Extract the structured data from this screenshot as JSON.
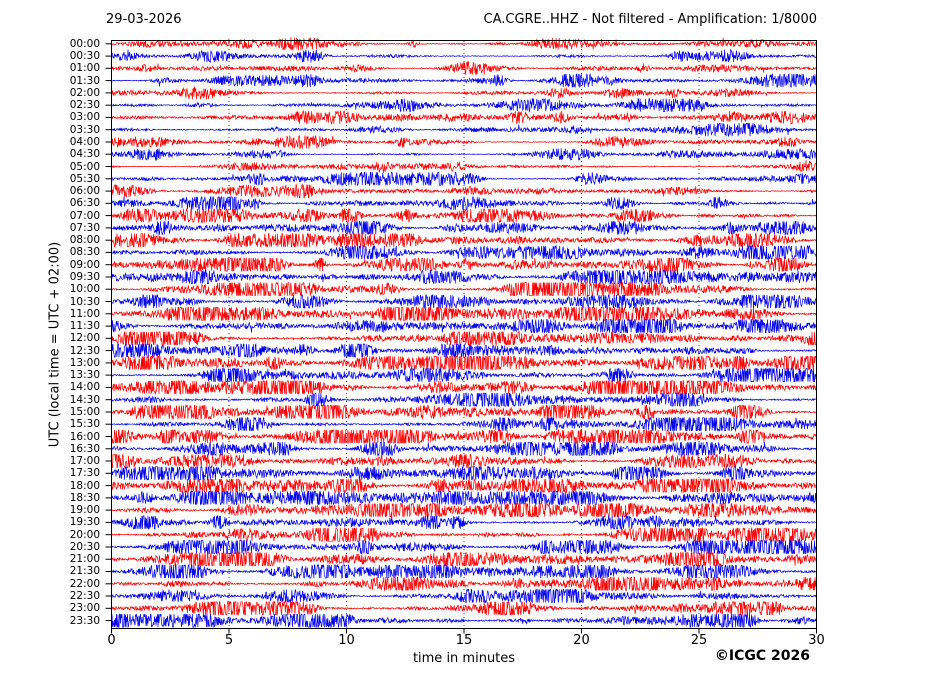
{
  "header": {
    "date": "29-03-2026",
    "title": "CA.CGRE..HHZ - Not filtered - Amplification: 1/8000"
  },
  "footer": {
    "copyright": "©ICGC 2026"
  },
  "chart_data": {
    "type": "line",
    "chart_kind": "helicorder-daily-seismogram",
    "title": "CA.CGRE..HHZ - Not filtered - Amplification: 1/8000",
    "date": "29-03-2026",
    "xlabel": "time in minutes",
    "ylabel": "UTC (local time = UTC + 02:00)",
    "xlim": [
      0,
      30
    ],
    "x_ticks": [
      0,
      5,
      10,
      15,
      20,
      25,
      30
    ],
    "minutes_per_row": 30,
    "grid": {
      "vertical_dotted_every_minutes": 5,
      "color": "#444444"
    },
    "legend": "none",
    "trace_colors": {
      "red": "#ff0000",
      "blue": "#0000ee"
    },
    "frame_color": "#000000",
    "rows": [
      {
        "label": "00:00",
        "color": "red",
        "relative_amplitude": 0.32
      },
      {
        "label": "00:30",
        "color": "blue",
        "relative_amplitude": 0.3
      },
      {
        "label": "01:00",
        "color": "red",
        "relative_amplitude": 0.3
      },
      {
        "label": "01:30",
        "color": "blue",
        "relative_amplitude": 0.33
      },
      {
        "label": "02:00",
        "color": "red",
        "relative_amplitude": 0.31
      },
      {
        "label": "02:30",
        "color": "blue",
        "relative_amplitude": 0.33
      },
      {
        "label": "03:00",
        "color": "red",
        "relative_amplitude": 0.32
      },
      {
        "label": "03:30",
        "color": "blue",
        "relative_amplitude": 0.34
      },
      {
        "label": "04:00",
        "color": "red",
        "relative_amplitude": 0.3
      },
      {
        "label": "04:30",
        "color": "blue",
        "relative_amplitude": 0.26
      },
      {
        "label": "05:00",
        "color": "red",
        "relative_amplitude": 0.27
      },
      {
        "label": "05:30",
        "color": "blue",
        "relative_amplitude": 0.34
      },
      {
        "label": "06:00",
        "color": "red",
        "relative_amplitude": 0.38
      },
      {
        "label": "06:30",
        "color": "blue",
        "relative_amplitude": 0.4
      },
      {
        "label": "07:00",
        "color": "red",
        "relative_amplitude": 0.42
      },
      {
        "label": "07:30",
        "color": "blue",
        "relative_amplitude": 0.45
      },
      {
        "label": "08:00",
        "color": "red",
        "relative_amplitude": 0.46
      },
      {
        "label": "08:30",
        "color": "blue",
        "relative_amplitude": 0.5
      },
      {
        "label": "09:00",
        "color": "red",
        "relative_amplitude": 0.56
      },
      {
        "label": "09:30",
        "color": "blue",
        "relative_amplitude": 0.62
      },
      {
        "label": "10:00",
        "color": "red",
        "relative_amplitude": 0.58
      },
      {
        "label": "10:30",
        "color": "blue",
        "relative_amplitude": 0.62
      },
      {
        "label": "11:00",
        "color": "red",
        "relative_amplitude": 0.68
      },
      {
        "label": "11:30",
        "color": "blue",
        "relative_amplitude": 0.72
      },
      {
        "label": "12:00",
        "color": "red",
        "relative_amplitude": 0.7
      },
      {
        "label": "12:30",
        "color": "blue",
        "relative_amplitude": 0.66
      },
      {
        "label": "13:00",
        "color": "red",
        "relative_amplitude": 0.72
      },
      {
        "label": "13:30",
        "color": "blue",
        "relative_amplitude": 0.58
      },
      {
        "label": "14:00",
        "color": "red",
        "relative_amplitude": 0.62
      },
      {
        "label": "14:30",
        "color": "blue",
        "relative_amplitude": 0.6
      },
      {
        "label": "15:00",
        "color": "red",
        "relative_amplitude": 0.66
      },
      {
        "label": "15:30",
        "color": "blue",
        "relative_amplitude": 0.62
      },
      {
        "label": "16:00",
        "color": "red",
        "relative_amplitude": 0.72
      },
      {
        "label": "16:30",
        "color": "blue",
        "relative_amplitude": 0.62
      },
      {
        "label": "17:00",
        "color": "red",
        "relative_amplitude": 0.58
      },
      {
        "label": "17:30",
        "color": "blue",
        "relative_amplitude": 0.62
      },
      {
        "label": "18:00",
        "color": "red",
        "relative_amplitude": 0.66
      },
      {
        "label": "18:30",
        "color": "blue",
        "relative_amplitude": 0.62
      },
      {
        "label": "19:00",
        "color": "red",
        "relative_amplitude": 0.66
      },
      {
        "label": "19:30",
        "color": "blue",
        "relative_amplitude": 0.62
      },
      {
        "label": "20:00",
        "color": "red",
        "relative_amplitude": 0.58
      },
      {
        "label": "20:30",
        "color": "blue",
        "relative_amplitude": 0.62
      },
      {
        "label": "21:00",
        "color": "red",
        "relative_amplitude": 0.66
      },
      {
        "label": "21:30",
        "color": "blue",
        "relative_amplitude": 0.6
      },
      {
        "label": "22:00",
        "color": "red",
        "relative_amplitude": 0.66
      },
      {
        "label": "22:30",
        "color": "blue",
        "relative_amplitude": 0.6
      },
      {
        "label": "23:00",
        "color": "red",
        "relative_amplitude": 0.62
      },
      {
        "label": "23:30",
        "color": "blue",
        "relative_amplitude": 0.58
      }
    ]
  }
}
